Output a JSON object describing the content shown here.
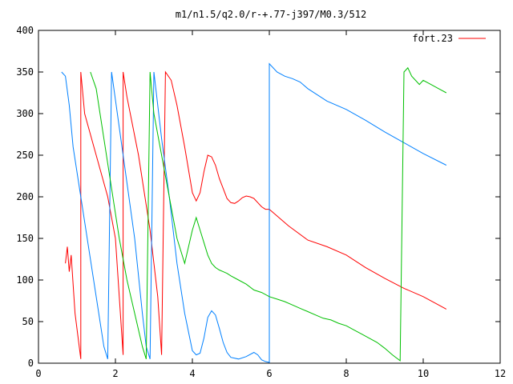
{
  "chart_data": {
    "type": "line",
    "title": "m1/n1.5/q2.0/r-+.77-j397/M0.3/512",
    "xlabel": "",
    "ylabel": "",
    "xlim": [
      0,
      12
    ],
    "ylim": [
      0,
      400
    ],
    "x_ticks": [
      "0",
      "2",
      "4",
      "6",
      "8",
      "10",
      "12"
    ],
    "y_ticks": [
      "0",
      "50",
      "100",
      "150",
      "200",
      "250",
      "300",
      "350",
      "400"
    ],
    "grid": false,
    "legend": {
      "placement": "top-right",
      "entries": [
        "fort.23"
      ]
    },
    "series": [
      {
        "name": "fort.23",
        "color": "#ff0000",
        "x": [
          0.7,
          0.75,
          0.8,
          0.85,
          0.9,
          0.95,
          1.1,
          1.1,
          1.2,
          1.5,
          1.8,
          2.0,
          2.2,
          2.2,
          2.3,
          2.6,
          2.9,
          3.1,
          3.2,
          3.3,
          3.3,
          3.45,
          3.6,
          3.8,
          4.0,
          4.1,
          4.2,
          4.3,
          4.4,
          4.5,
          4.6,
          4.7,
          4.8,
          4.9,
          5.0,
          5.1,
          5.2,
          5.3,
          5.4,
          5.5,
          5.6,
          5.7,
          5.8,
          5.9,
          6.0,
          6.5,
          7.0,
          7.5,
          8.0,
          8.5,
          9.0,
          9.5,
          10.0,
          10.6
        ],
        "y": [
          120,
          140,
          110,
          130,
          95,
          60,
          5,
          350,
          300,
          250,
          200,
          150,
          10,
          350,
          320,
          250,
          160,
          80,
          10,
          350,
          350,
          340,
          310,
          260,
          205,
          195,
          205,
          230,
          250,
          248,
          238,
          222,
          210,
          198,
          193,
          192,
          195,
          199,
          201,
          200,
          198,
          193,
          188,
          185,
          185,
          165,
          148,
          140,
          130,
          115,
          102,
          90,
          80,
          65
        ]
      },
      {
        "name": "",
        "color": "#0080ff",
        "x": [
          0.6,
          0.7,
          0.8,
          0.9,
          1.1,
          1.3,
          1.5,
          1.7,
          1.8,
          1.9,
          2.2,
          2.5,
          2.7,
          2.8,
          2.9,
          3.0,
          3.2,
          3.4,
          3.6,
          3.8,
          4.0,
          4.1,
          4.2,
          4.3,
          4.4,
          4.5,
          4.6,
          4.7,
          4.8,
          4.9,
          5.0,
          5.2,
          5.4,
          5.6,
          5.7,
          5.8,
          5.9,
          6.0,
          6.0,
          6.2,
          6.4,
          6.6,
          6.8,
          7.0,
          7.5,
          8.0,
          8.5,
          9.0,
          9.5,
          10.0,
          10.6
        ],
        "y": [
          350,
          345,
          310,
          260,
          200,
          140,
          80,
          20,
          5,
          350,
          250,
          150,
          60,
          20,
          5,
          350,
          270,
          200,
          120,
          60,
          15,
          10,
          12,
          30,
          55,
          63,
          58,
          42,
          25,
          13,
          7,
          5,
          8,
          13,
          10,
          4,
          2,
          1,
          360,
          350,
          345,
          342,
          338,
          330,
          315,
          305,
          292,
          278,
          265,
          252,
          238
        ]
      },
      {
        "name": "",
        "color": "#00c000",
        "x": [
          1.35,
          1.5,
          1.6,
          1.7,
          1.8,
          1.9,
          2.0,
          2.1,
          2.3,
          2.5,
          2.6,
          2.7,
          2.8,
          2.9,
          3.0,
          3.2,
          3.4,
          3.6,
          3.8,
          4.0,
          4.1,
          4.2,
          4.3,
          4.4,
          4.5,
          4.6,
          4.7,
          4.8,
          4.9,
          5.0,
          5.2,
          5.4,
          5.6,
          5.8,
          6.0,
          6.2,
          6.4,
          6.6,
          6.8,
          7.0,
          7.2,
          7.4,
          7.6,
          7.8,
          8.0,
          8.2,
          8.4,
          8.6,
          8.8,
          9.0,
          9.2,
          9.4,
          9.5,
          9.6,
          9.7,
          9.8,
          9.9,
          10.0,
          10.2,
          10.4,
          10.6
        ],
        "y": [
          350,
          330,
          300,
          270,
          240,
          210,
          180,
          150,
          100,
          60,
          40,
          20,
          5,
          350,
          300,
          250,
          200,
          150,
          120,
          160,
          175,
          160,
          145,
          130,
          120,
          115,
          112,
          110,
          108,
          105,
          100,
          95,
          88,
          85,
          80,
          77,
          74,
          70,
          66,
          62,
          58,
          54,
          52,
          48,
          45,
          40,
          35,
          30,
          25,
          18,
          10,
          3,
          350,
          355,
          345,
          340,
          335,
          340,
          335,
          330,
          325
        ]
      }
    ],
    "series_colors": [
      "#ff0000",
      "#0080ff",
      "#00c000"
    ]
  }
}
